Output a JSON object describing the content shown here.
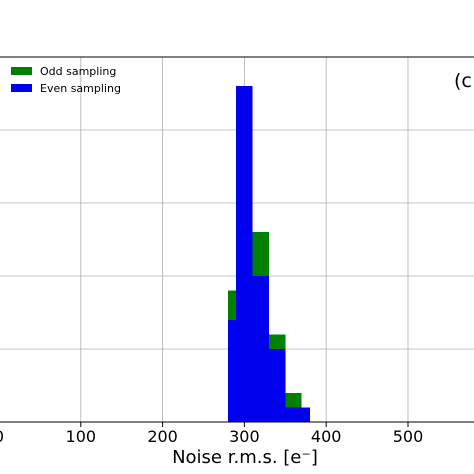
{
  "chart_data": {
    "type": "bar",
    "panel_label": "(c",
    "xlabel": "Noise r.m.s. [e⁻]",
    "ylabel": "",
    "xlim": [
      0,
      575
    ],
    "ylim": [
      0,
      50
    ],
    "xticks": [
      0,
      100,
      200,
      300,
      400,
      500
    ],
    "xtick_labels": [
      "0",
      "100",
      "200",
      "300",
      "400",
      "500"
    ],
    "yticks": [
      0,
      10,
      20,
      30,
      40,
      50
    ],
    "grid": true,
    "legend_position": "top-left",
    "bin_width": 10,
    "series": [
      {
        "name": "Odd sampling",
        "color": "#008000",
        "bins": [
          {
            "x0": 280,
            "x1": 290,
            "value": 18
          },
          {
            "x0": 290,
            "x1": 300,
            "value": 46
          },
          {
            "x0": 300,
            "x1": 310,
            "value": 16
          },
          {
            "x0": 310,
            "x1": 320,
            "value": 26
          },
          {
            "x0": 320,
            "x1": 330,
            "value": 26
          },
          {
            "x0": 330,
            "x1": 340,
            "value": 12
          },
          {
            "x0": 340,
            "x1": 350,
            "value": 12
          },
          {
            "x0": 350,
            "x1": 360,
            "value": 4
          },
          {
            "x0": 360,
            "x1": 370,
            "value": 4
          }
        ]
      },
      {
        "name": "Even sampling",
        "color": "#0000ee",
        "bins": [
          {
            "x0": 280,
            "x1": 290,
            "value": 14
          },
          {
            "x0": 290,
            "x1": 300,
            "value": 46
          },
          {
            "x0": 300,
            "x1": 310,
            "value": 46
          },
          {
            "x0": 310,
            "x1": 320,
            "value": 20
          },
          {
            "x0": 320,
            "x1": 330,
            "value": 20
          },
          {
            "x0": 330,
            "x1": 340,
            "value": 10
          },
          {
            "x0": 340,
            "x1": 350,
            "value": 10
          },
          {
            "x0": 350,
            "x1": 360,
            "value": 2
          },
          {
            "x0": 360,
            "x1": 370,
            "value": 2
          },
          {
            "x0": 370,
            "x1": 380,
            "value": 2
          }
        ]
      }
    ]
  }
}
